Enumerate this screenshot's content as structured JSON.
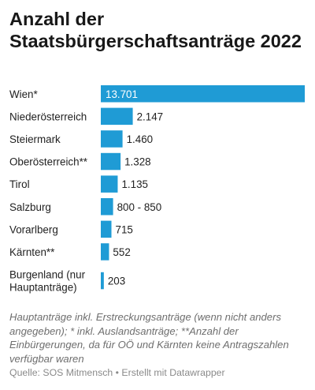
{
  "chart_data": {
    "type": "bar",
    "orientation": "horizontal",
    "title": "Anzahl der Staatsbürgerschaftsanträge 2022",
    "categories": [
      [
        "Wien*"
      ],
      [
        "Niederösterreich"
      ],
      [
        "Steiermark"
      ],
      [
        "Oberösterreich**"
      ],
      [
        "Tirol"
      ],
      [
        "Salzburg"
      ],
      [
        "Vorarlberg"
      ],
      [
        "Kärnten**"
      ],
      [
        "Burgenland (nur",
        "Hauptanträge)"
      ]
    ],
    "values": [
      13701,
      2147,
      1460,
      1328,
      1135,
      825,
      715,
      552,
      203
    ],
    "value_labels": [
      "13.701",
      "2.147",
      "1.460",
      "1.328",
      "1.135",
      "800 - 850",
      "715",
      "552",
      "203"
    ],
    "xlim": [
      0,
      13701
    ],
    "bar_color": "#1f9bd5",
    "grid": false,
    "legend": "none"
  },
  "note": "Hauptanträge inkl. Erstreckungsanträge (wenn nicht anders angegeben); * inkl. Auslandsanträge; **Anzahl der Einbürgerungen, da für OÖ und Kärnten keine Antragszahlen verfügbar waren",
  "source": {
    "label": "Quelle:",
    "name": "SOS Mitmensch",
    "separator": "•",
    "credit": "Erstellt mit Datawrapper"
  }
}
